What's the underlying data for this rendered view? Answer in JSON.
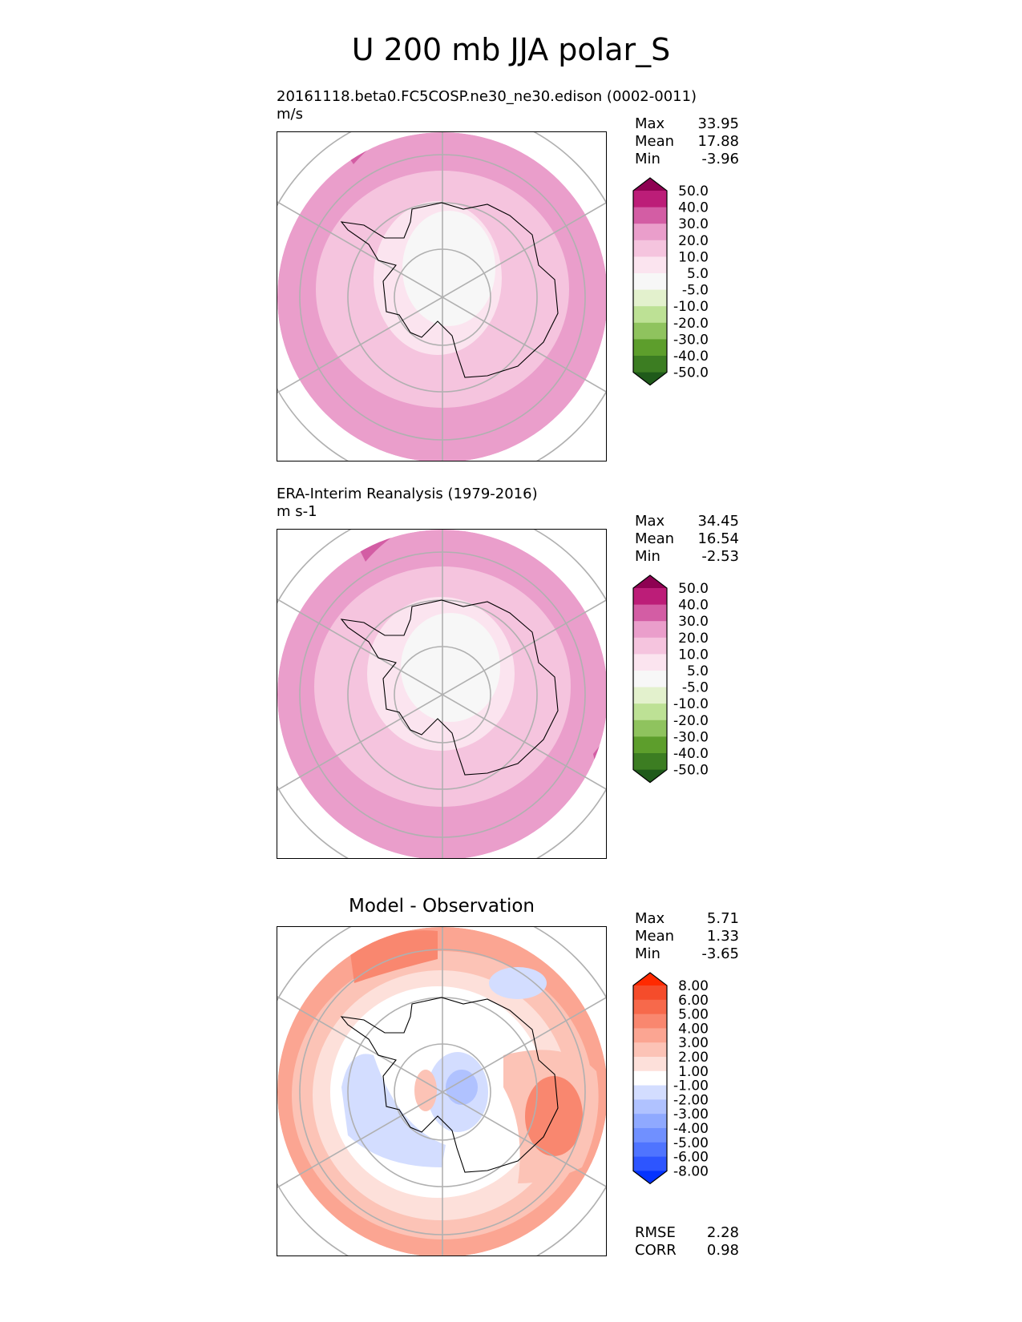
{
  "title": "U 200 mb JJA polar_S",
  "panels": [
    {
      "id": "model",
      "title_line1": "20161118.beta0.FC5COSP.ne30_ne30.edison (0002-0011)",
      "title_line2": "m/s",
      "stats": [
        {
          "label": "Max",
          "value": "33.95"
        },
        {
          "label": "Mean",
          "value": "17.88"
        },
        {
          "label": "Min",
          "value": "-3.96"
        }
      ],
      "colorbar": {
        "colors": [
          "#1f5a1a",
          "#3c7d22",
          "#5d9e2c",
          "#8fc35e",
          "#bde195",
          "#e3f1cd",
          "#f7f7f7",
          "#fbe4ef",
          "#f5c4de",
          "#ea9ecb",
          "#d35da4",
          "#bc1d78",
          "#8e0152"
        ],
        "levels": [
          "-50.0",
          "-40.0",
          "-30.0",
          "-20.0",
          "-10.0",
          "-5.0",
          "5.0",
          "10.0",
          "20.0",
          "30.0",
          "40.0",
          "50.0"
        ]
      }
    },
    {
      "id": "obs",
      "title_line1": "ERA-Interim Reanalysis (1979-2016)",
      "title_line2": "m s-1",
      "stats": [
        {
          "label": "Max",
          "value": "34.45"
        },
        {
          "label": "Mean",
          "value": "16.54"
        },
        {
          "label": "Min",
          "value": "-2.53"
        }
      ],
      "colorbar": {
        "colors": [
          "#1f5a1a",
          "#3c7d22",
          "#5d9e2c",
          "#8fc35e",
          "#bde195",
          "#e3f1cd",
          "#f7f7f7",
          "#fbe4ef",
          "#f5c4de",
          "#ea9ecb",
          "#d35da4",
          "#bc1d78",
          "#8e0152"
        ],
        "levels": [
          "-50.0",
          "-40.0",
          "-30.0",
          "-20.0",
          "-10.0",
          "-5.0",
          "5.0",
          "10.0",
          "20.0",
          "30.0",
          "40.0",
          "50.0"
        ]
      }
    },
    {
      "id": "diff",
      "title_line1": "Model - Observation",
      "stats": [
        {
          "label": "Max",
          "value": "5.71"
        },
        {
          "label": "Mean",
          "value": "1.33"
        },
        {
          "label": "Min",
          "value": "-3.65"
        }
      ],
      "metrics": [
        {
          "label": "RMSE",
          "value": "2.28"
        },
        {
          "label": "CORR",
          "value": "0.98"
        }
      ],
      "colorbar": {
        "colors": [
          "#0433ff",
          "#2d55ff",
          "#4f74ff",
          "#7090ff",
          "#8fa9ff",
          "#b0c2ff",
          "#d3ddff",
          "#ffffff",
          "#fde0da",
          "#fcc3b6",
          "#fba592",
          "#f9876f",
          "#f7694b",
          "#f54c2b",
          "#ff2a00"
        ],
        "levels": [
          "-8.00",
          "-6.00",
          "-5.00",
          "-4.00",
          "-3.00",
          "-2.00",
          "-1.00",
          "1.00",
          "2.00",
          "3.00",
          "4.00",
          "5.00",
          "6.00",
          "8.00"
        ]
      }
    }
  ],
  "chart_data": [
    {
      "type": "heatmap",
      "projection": "south polar stereographic",
      "title": "20161118.beta0.FC5COSP.ne30_ne30.edison (0002-0011)",
      "units": "m/s",
      "max": 33.95,
      "mean": 17.88,
      "min": -3.96,
      "contour_levels": [
        -50,
        -40,
        -30,
        -20,
        -10,
        -5,
        5,
        10,
        20,
        30,
        40,
        50
      ]
    },
    {
      "type": "heatmap",
      "projection": "south polar stereographic",
      "title": "ERA-Interim Reanalysis (1979-2016)",
      "units": "m s-1",
      "max": 34.45,
      "mean": 16.54,
      "min": -2.53,
      "contour_levels": [
        -50,
        -40,
        -30,
        -20,
        -10,
        -5,
        5,
        10,
        20,
        30,
        40,
        50
      ]
    },
    {
      "type": "heatmap",
      "projection": "south polar stereographic",
      "title": "Model - Observation",
      "max": 5.71,
      "mean": 1.33,
      "min": -3.65,
      "rmse": 2.28,
      "corr": 0.98,
      "contour_levels": [
        -8,
        -6,
        -5,
        -4,
        -3,
        -2,
        -1,
        1,
        2,
        3,
        4,
        5,
        6,
        8
      ]
    }
  ]
}
